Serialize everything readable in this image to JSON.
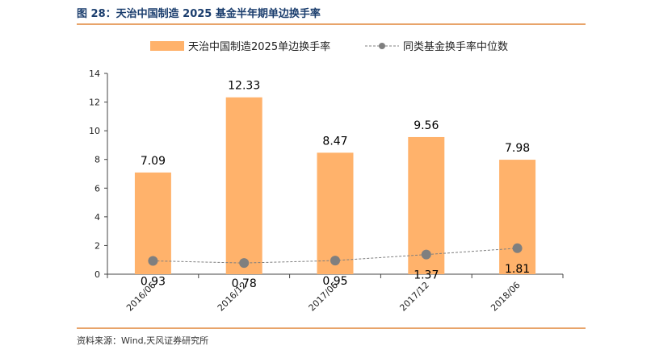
{
  "figure": {
    "title": "图 28：天治中国制造 2025 基金半年期单边换手率",
    "source": "资料来源：Wind,天风证券研究所"
  },
  "chart_data": {
    "type": "bar",
    "categories": [
      "2016/06",
      "2016/12",
      "2017/06",
      "2017/12",
      "2018/06"
    ],
    "series": [
      {
        "name": "天治中国制造2025单边换手率",
        "kind": "bar",
        "color": "#ffb26b",
        "values": [
          7.09,
          12.33,
          8.47,
          9.56,
          7.98
        ]
      },
      {
        "name": "同类基金换手率中位数",
        "kind": "line-dashed",
        "color": "#7f7f7f",
        "values": [
          0.93,
          0.78,
          0.95,
          1.37,
          1.81
        ]
      }
    ],
    "ylim": [
      0,
      14
    ],
    "yticks": [
      "0",
      "2",
      "4",
      "6",
      "8",
      "10",
      "12",
      "14"
    ],
    "legend_position": "top",
    "title": "",
    "xlabel": "",
    "ylabel": ""
  }
}
